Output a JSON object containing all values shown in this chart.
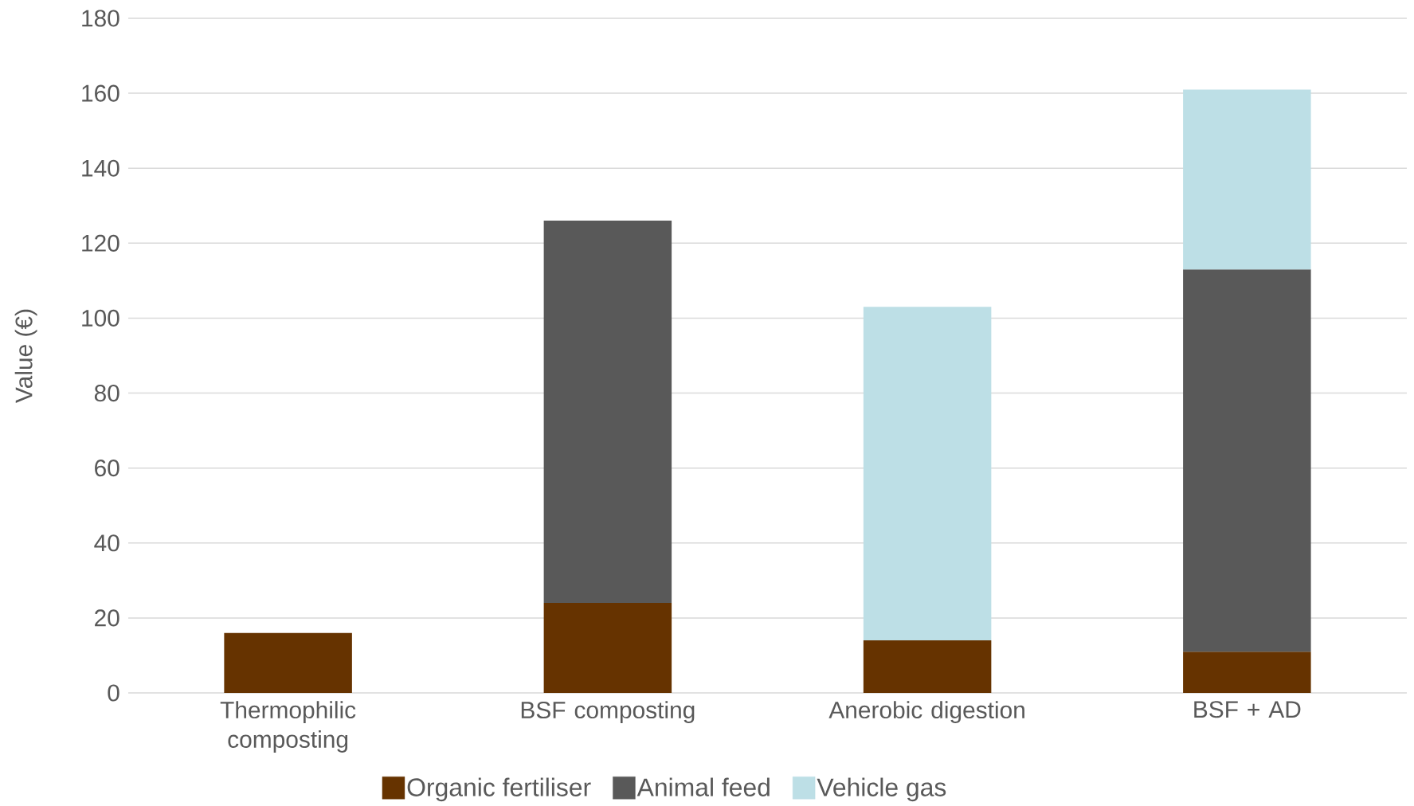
{
  "chart_data": {
    "type": "bar",
    "stacked": true,
    "ylabel": "Value (€)",
    "categories": [
      "Thermophilic composting",
      "BSF composting",
      "Anerobic digestion",
      "BSF + AD"
    ],
    "series": [
      {
        "name": "Organic fertiliser",
        "color": "#663300",
        "values": [
          16,
          24,
          14,
          11
        ]
      },
      {
        "name": "Animal feed",
        "color": "#595959",
        "values": [
          null,
          102,
          null,
          102
        ]
      },
      {
        "name": "Vehicle gas",
        "color": "#bddfe6",
        "values": [
          null,
          null,
          89,
          48
        ]
      }
    ],
    "ylim": [
      0,
      180
    ],
    "yticks": [
      0,
      20,
      40,
      60,
      80,
      100,
      120,
      140,
      160,
      180
    ],
    "grid": "y",
    "legend": "bottom"
  }
}
